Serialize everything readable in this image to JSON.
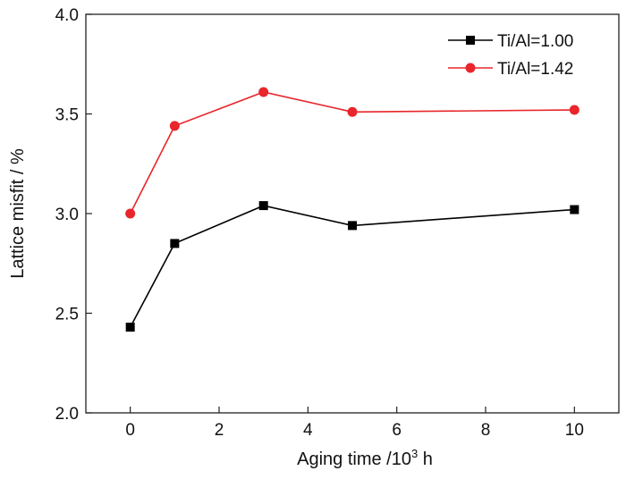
{
  "chart_data": {
    "type": "line",
    "title": "",
    "xlabel": "Aging time /10",
    "xlabel_sup": "3",
    "xlabel_suffix": " h",
    "ylabel": "Lattice misfit / %",
    "xlim": [
      -1,
      11
    ],
    "ylim": [
      2.0,
      4.0
    ],
    "xticks": [
      0,
      2,
      4,
      6,
      8,
      10
    ],
    "xtick_labels": [
      "0",
      "2",
      "4",
      "6",
      "8",
      "10"
    ],
    "yticks": [
      2.0,
      2.5,
      3.0,
      3.5,
      4.0
    ],
    "ytick_labels": [
      "2.0",
      "2.5",
      "3.0",
      "3.5",
      "4.0"
    ],
    "grid": false,
    "legend_position": "top-right",
    "x": [
      0,
      1,
      3,
      5,
      10
    ],
    "series": [
      {
        "name": "Ti/Al=1.00",
        "color": "#000000",
        "marker": "square",
        "values": [
          2.43,
          2.85,
          3.04,
          2.94,
          3.02
        ]
      },
      {
        "name": "Ti/Al=1.42",
        "color": "#e8262b",
        "marker": "circle",
        "values": [
          3.0,
          3.44,
          3.61,
          3.51,
          3.52
        ]
      }
    ]
  }
}
